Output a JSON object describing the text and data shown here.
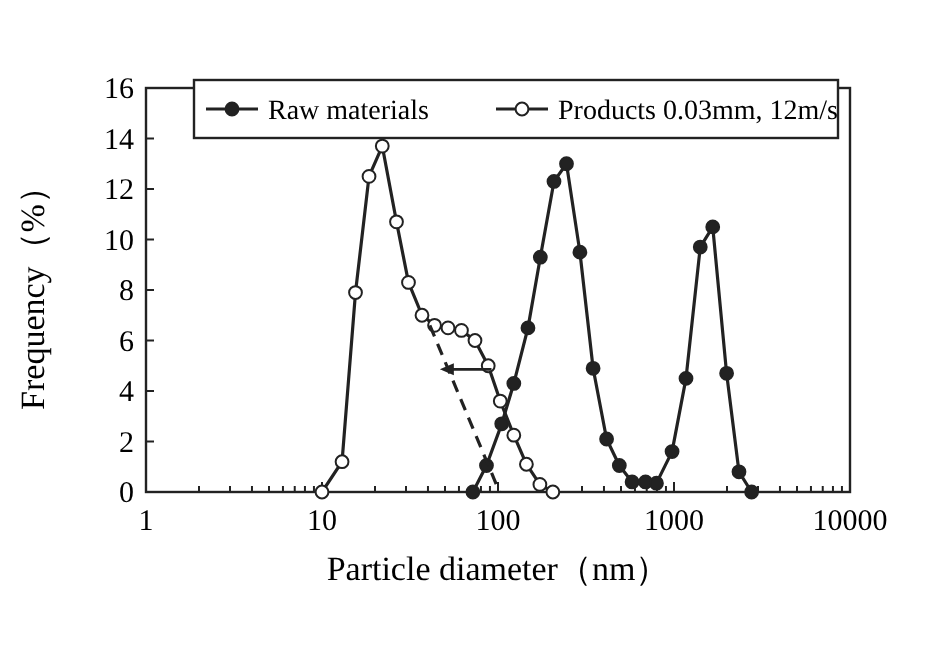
{
  "chart_data": {
    "type": "line",
    "xlabel": "Particle diameter（nm）",
    "ylabel": "Frequency（%）",
    "log": "x",
    "xlim": [
      1,
      10000
    ],
    "ylim": [
      0,
      16
    ],
    "xticks": [
      1,
      {
        "value": 2,
        "label": null
      },
      {
        "value": 3,
        "label": null
      },
      {
        "value": 4,
        "label": null
      },
      {
        "value": 5,
        "label": null
      },
      {
        "value": 6,
        "label": null
      },
      {
        "value": 7,
        "label": null
      },
      {
        "value": 8,
        "label": null
      },
      {
        "value": 9,
        "label": null
      },
      10,
      {
        "value": 20,
        "label": null
      },
      {
        "value": 30,
        "label": null
      },
      {
        "value": 40,
        "label": null
      },
      {
        "value": 50,
        "label": null
      },
      {
        "value": 60,
        "label": null
      },
      {
        "value": 70,
        "label": null
      },
      {
        "value": 80,
        "label": null
      },
      {
        "value": 90,
        "label": null
      },
      100,
      {
        "value": 200,
        "label": null
      },
      {
        "value": 300,
        "label": null
      },
      {
        "value": 400,
        "label": null
      },
      {
        "value": 500,
        "label": null
      },
      {
        "value": 600,
        "label": null
      },
      {
        "value": 700,
        "label": null
      },
      {
        "value": 800,
        "label": null
      },
      {
        "value": 900,
        "label": null
      },
      1000,
      {
        "value": 2000,
        "label": null
      },
      {
        "value": 3000,
        "label": null
      },
      {
        "value": 4000,
        "label": null
      },
      {
        "value": 5000,
        "label": null
      },
      {
        "value": 6000,
        "label": null
      },
      {
        "value": 7000,
        "label": null
      },
      {
        "value": 8000,
        "label": null
      },
      {
        "value": 9000,
        "label": null
      },
      10000
    ],
    "yticks": [
      0,
      2,
      4,
      6,
      8,
      10,
      12,
      14,
      16
    ],
    "grid": false,
    "legend": "top",
    "series": [
      {
        "name": "Raw materials",
        "color": "#222222",
        "marker": "circle",
        "x": [
          72,
          86,
          105,
          123,
          148,
          174,
          208,
          245,
          292,
          347,
          414,
          489,
          578,
          689,
          795,
          975,
          1170,
          1410,
          1660,
          1990,
          2340,
          2760
        ],
        "values": [
          0,
          1.05,
          2.7,
          4.3,
          6.5,
          9.3,
          12.3,
          13.0,
          9.5,
          4.9,
          2.1,
          1.05,
          0.4,
          0.4,
          0.35,
          1.6,
          4.5,
          9.7,
          10.5,
          4.7,
          0.8,
          0
        ]
      },
      {
        "name": "Products 0.03mm, 12m/s",
        "color": "#222222",
        "marker": "circle",
        "x": [
          10,
          13,
          15.5,
          18.5,
          22,
          26.5,
          31,
          37,
          43.6,
          52,
          62,
          74,
          88,
          103,
          123,
          145,
          173,
          205
        ],
        "values": [
          0,
          1.2,
          7.9,
          12.5,
          13.7,
          10.7,
          8.3,
          7.0,
          6.6,
          6.5,
          6.4,
          6.0,
          5.0,
          3.6,
          2.25,
          1.1,
          0.3,
          0
        ]
      },
      {
        "color": "#222222",
        "marker": "none",
        "line_style": "dashed",
        "x": [
          41,
          102
        ],
        "values": [
          6.6,
          0
        ]
      }
    ]
  }
}
